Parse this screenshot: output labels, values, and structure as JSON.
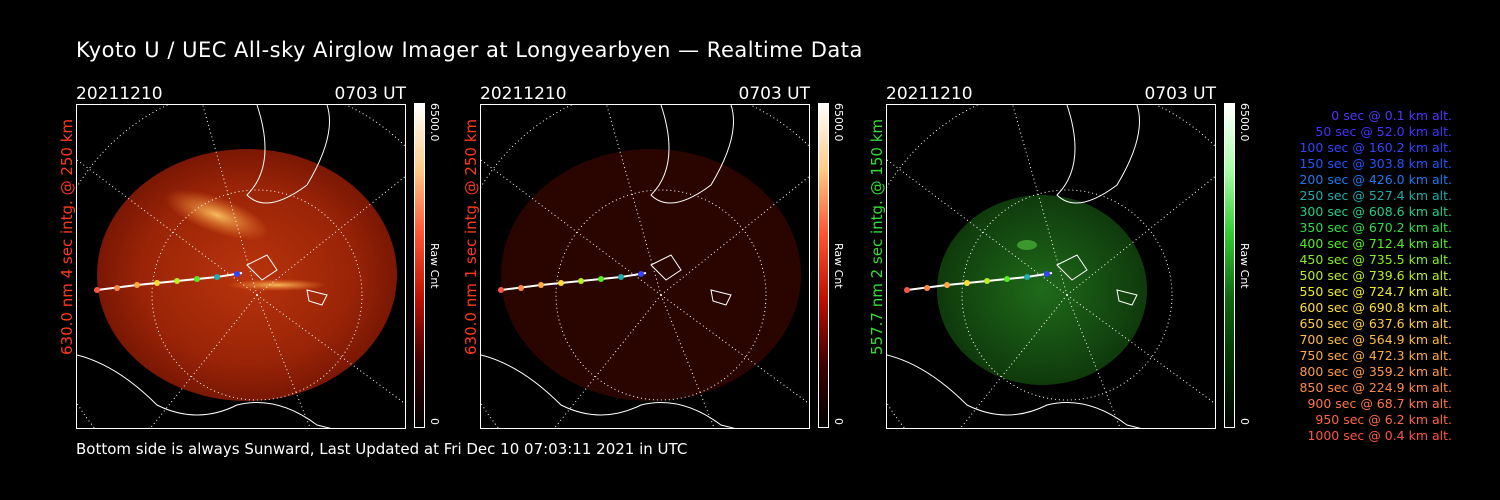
{
  "title": "Kyoto U / UEC All-sky Airglow Imager at Longyearbyen — Realtime Data",
  "footer": "Bottom side is always Sunward, Last Updated at Fri Dec 10 07:03:11 2021 in UTC",
  "colors": {
    "red_label": "#ff3a1a",
    "green_label": "#33dd33",
    "background": "#000000"
  },
  "panels": [
    {
      "date": "20211210",
      "time": "0703 UT",
      "side_label": "630.0 nm 4 sec intg. @ 250 km",
      "colorbar_max": "6500.0",
      "colorbar_min": "0",
      "colorbar_unit": "Raw Cnt",
      "brightness": "bright"
    },
    {
      "date": "20211210",
      "time": "0703 UT",
      "side_label": "630.0 nm 1 sec intg. @ 250 km",
      "colorbar_max": "6500.0",
      "colorbar_min": "0",
      "colorbar_unit": "Raw Cnt",
      "brightness": "dim"
    },
    {
      "date": "20211210",
      "time": "0703 UT",
      "side_label": "557.7 nm 2 sec intg. @ 150 km",
      "colorbar_max": "6500.0",
      "colorbar_min": "0",
      "colorbar_unit": "Raw Cnt",
      "brightness": "green"
    }
  ],
  "legend": [
    {
      "text": "0 sec @   0.1 km alt.",
      "color": "#5533ff"
    },
    {
      "text": "50 sec @  52.0 km alt.",
      "color": "#4433ff"
    },
    {
      "text": "100 sec @ 160.2 km alt.",
      "color": "#3344ff"
    },
    {
      "text": "150 sec @ 303.8 km alt.",
      "color": "#2255ff"
    },
    {
      "text": "200 sec @ 426.0 km alt.",
      "color": "#2277ee"
    },
    {
      "text": "250 sec @ 527.4 km alt.",
      "color": "#22aaaa"
    },
    {
      "text": "300 sec @ 608.6 km alt.",
      "color": "#22cc88"
    },
    {
      "text": "350 sec @ 670.2 km alt.",
      "color": "#33dd44"
    },
    {
      "text": "400 sec @ 712.4 km alt.",
      "color": "#55ee22"
    },
    {
      "text": "450 sec @ 735.5 km alt.",
      "color": "#88ee22"
    },
    {
      "text": "500 sec @ 739.6 km alt.",
      "color": "#bbee22"
    },
    {
      "text": "550 sec @ 724.7 km alt.",
      "color": "#eeee22"
    },
    {
      "text": "600 sec @ 690.8 km alt.",
      "color": "#ffdd33"
    },
    {
      "text": "650 sec @ 637.6 km alt.",
      "color": "#ffcc44"
    },
    {
      "text": "700 sec @ 564.9 km alt.",
      "color": "#ffbb44"
    },
    {
      "text": "750 sec @ 472.3 km alt.",
      "color": "#ffaa44"
    },
    {
      "text": "800 sec @ 359.2 km alt.",
      "color": "#ff9944"
    },
    {
      "text": "850 sec @ 224.9 km alt.",
      "color": "#ff8844"
    },
    {
      "text": "900 sec @  68.7 km alt.",
      "color": "#ff7744"
    },
    {
      "text": "950 sec @   6.2 km alt.",
      "color": "#ff6644"
    },
    {
      "text": "1000 sec @   0.4 km alt.",
      "color": "#ff5544"
    }
  ]
}
